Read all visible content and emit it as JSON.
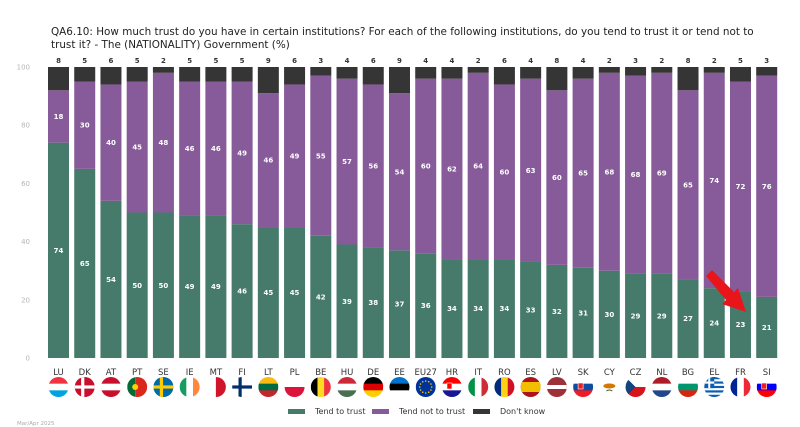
{
  "title": "QA6.10: How much trust do you have in certain institutions? For each of the following institutions, do you tend to trust it or tend not to trust it? - The (NATIONALITY) Government (%)",
  "footnote": "Mar/Apr 2025",
  "colors": {
    "tend_to_trust": "#467b6c",
    "tend_not_to_trust": "#875a99",
    "dont_know": "#353535",
    "highlight_arrow": "#e8161b"
  },
  "legend": [
    {
      "label": "Tend to trust",
      "color": "#467b6c"
    },
    {
      "label": "Tend not to trust",
      "color": "#875a99"
    },
    {
      "label": "Don't know",
      "color": "#353535"
    }
  ],
  "chart_data": {
    "type": "bar",
    "stacked": true,
    "title": "QA6.10: How much trust do you have in certain institutions? For each of the following institutions, do you tend to trust it or tend not to trust it? - The (NATIONALITY) Government (%)",
    "xlabel": "",
    "ylabel": "",
    "ylim": [
      0,
      100
    ],
    "yticks": [
      0,
      20,
      40,
      60,
      80,
      100
    ],
    "grid": false,
    "legend_position": "bottom",
    "categories": [
      "LU",
      "DK",
      "AT",
      "PT",
      "SE",
      "IE",
      "MT",
      "FI",
      "LT",
      "PL",
      "BE",
      "HU",
      "DE",
      "EE",
      "EU27",
      "HR",
      "IT",
      "RO",
      "ES",
      "LV",
      "SK",
      "CY",
      "CZ",
      "NL",
      "BG",
      "EL",
      "FR",
      "SI"
    ],
    "series": [
      {
        "name": "Tend to trust",
        "values": [
          74,
          65,
          54,
          50,
          50,
          49,
          49,
          46,
          45,
          45,
          42,
          39,
          38,
          37,
          36,
          34,
          34,
          34,
          33,
          32,
          31,
          30,
          29,
          29,
          27,
          24,
          23,
          21
        ]
      },
      {
        "name": "Tend not to trust",
        "values": [
          18,
          30,
          40,
          45,
          48,
          46,
          46,
          49,
          46,
          49,
          55,
          57,
          56,
          54,
          60,
          62,
          64,
          60,
          63,
          60,
          65,
          68,
          68,
          69,
          65,
          74,
          72,
          76
        ]
      },
      {
        "name": "Don't know",
        "values": [
          8,
          5,
          6,
          5,
          2,
          5,
          5,
          5,
          9,
          6,
          3,
          4,
          6,
          9,
          4,
          4,
          2,
          6,
          4,
          8,
          4,
          2,
          3,
          2,
          8,
          2,
          5,
          3
        ]
      }
    ],
    "annotations": [
      {
        "type": "arrow",
        "color": "#e8161b",
        "points_to": "SI",
        "description": "Red arrow pointing to Slovenia's lowest trust bar"
      }
    ]
  }
}
